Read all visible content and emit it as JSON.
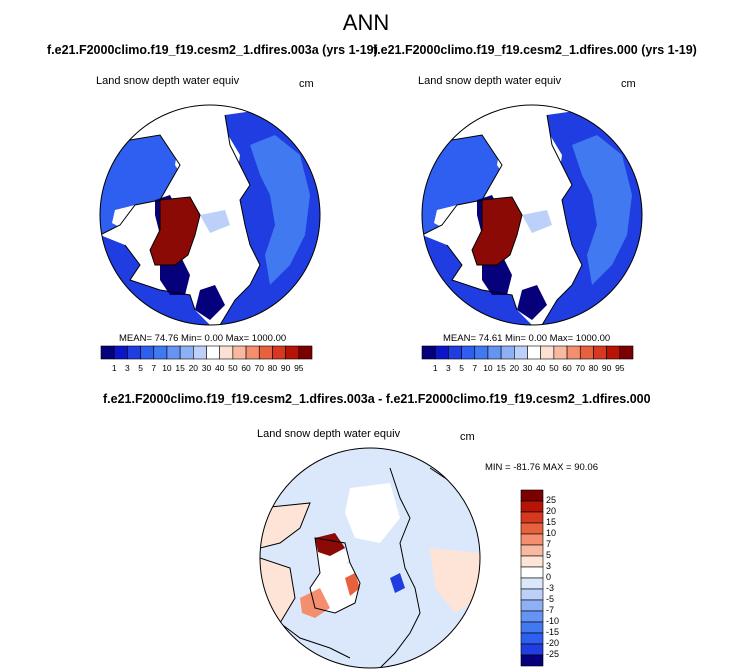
{
  "figure": {
    "title": "ANN",
    "diff_title": "f.e21.F2000climo.f19_f19.cesm2_1.dfires.003a - f.e21.F2000climo.f19_f19.cesm2_1.dfires.000"
  },
  "panels": [
    {
      "case_title": "f.e21.F2000climo.f19_f19.cesm2_1.dfires.003a (yrs 1-19)",
      "variable": "Land snow depth water equiv",
      "units": "cm",
      "stats": "MEAN= 74.76  Min=  0.00  Max= 1000.00"
    },
    {
      "case_title": "f.e21.F2000climo.f19_f19.cesm2_1.dfires.000 (yrs 1-19)",
      "variable": "Land snow depth water equiv",
      "units": "cm",
      "stats": "MEAN= 74.61  Min=  0.00  Max= 1000.00"
    },
    {
      "variable": "Land snow depth water equiv",
      "units": "cm",
      "stats": "MIN = -81.76 MAX = 90.06"
    }
  ],
  "colorbar_abs": {
    "labels": [
      "1",
      "3",
      "5",
      "7",
      "10",
      "15",
      "20",
      "30",
      "40",
      "50",
      "60",
      "70",
      "80",
      "90",
      "95"
    ],
    "colors": [
      "#06007a",
      "#0c16c8",
      "#1f3de0",
      "#2e5ff0",
      "#4179f0",
      "#6694f4",
      "#8eb1f6",
      "#bcd0fa",
      "#ffffff",
      "#fce0d4",
      "#f9b9a0",
      "#f38f6f",
      "#e8613f",
      "#d73820",
      "#b71306",
      "#7b0000"
    ]
  },
  "colorbar_diff": {
    "labels": [
      "25",
      "20",
      "15",
      "10",
      "7",
      "5",
      "3",
      "0",
      "-3",
      "-5",
      "-7",
      "-10",
      "-15",
      "-20",
      "-25"
    ],
    "colors": [
      "#7b0000",
      "#b71306",
      "#d73820",
      "#e8613f",
      "#f38f6f",
      "#f9b9a0",
      "#fde4d6",
      "#ffffff",
      "#dbe8fc",
      "#bcd0fa",
      "#8eb1f6",
      "#6694f4",
      "#4179f0",
      "#2e5ff0",
      "#1f3de0",
      "#06007a"
    ]
  },
  "map_colors": {
    "ocean": "#ffffff",
    "land_fill_abs": "#2e5ff0",
    "ice_white": "#ffffff",
    "high_snow": "#8b0a06",
    "diff_pos": "#fde4d6",
    "diff_neg": "#dbe8fc",
    "coast": "#000000"
  }
}
